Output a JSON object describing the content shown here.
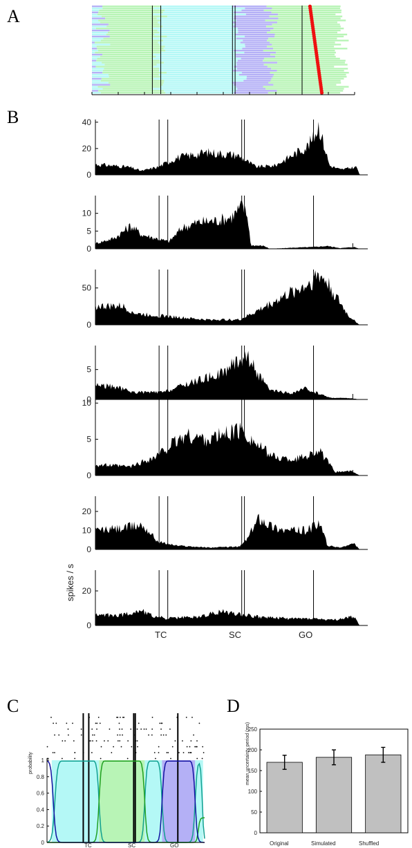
{
  "panel_labels": [
    "A",
    "B",
    "C",
    "D"
  ],
  "colors": {
    "cyan": "#b4f8f6",
    "green": "#b8f4b6",
    "violet": "#b4b0f6",
    "red": "#ee1111",
    "bar": "#c0c0c0",
    "line_blue": "#1010a0",
    "line_teal": "#10a090",
    "line_green": "#20a020"
  },
  "events": {
    "labels": [
      "TC",
      "SC",
      "GO"
    ],
    "times": [
      0.25,
      0.53,
      0.8
    ],
    "marker_times": [
      0.23,
      0.262,
      0.535,
      0.545,
      0.8
    ]
  },
  "chart_data": [
    {
      "panel": "A",
      "type": "raster-states",
      "trials": 44,
      "state_order": [
        "cyan",
        "green",
        "cyan",
        "violet",
        "green"
      ],
      "boundaries": [
        0.04,
        0.26,
        0.56,
        0.68,
        0.95
      ],
      "red_marker_range": [
        0.83,
        0.875
      ]
    },
    {
      "panel": "B",
      "type": "area",
      "ylabel": "spikes / s",
      "x_tick_labels": [
        "TC",
        "SC",
        "GO"
      ],
      "series": [
        {
          "yticks": [
            0,
            20,
            40
          ],
          "ymax": 42,
          "profile": [
            [
              0,
              8
            ],
            [
              0.12,
              6
            ],
            [
              0.17,
              3
            ],
            [
              0.23,
              6
            ],
            [
              0.3,
              13
            ],
            [
              0.41,
              17
            ],
            [
              0.52,
              15
            ],
            [
              0.59,
              6
            ],
            [
              0.66,
              7
            ],
            [
              0.74,
              17
            ],
            [
              0.78,
              22
            ],
            [
              0.8,
              28
            ],
            [
              0.82,
              38
            ],
            [
              0.84,
              22
            ],
            [
              0.86,
              7
            ],
            [
              0.9,
              4
            ],
            [
              0.96,
              6
            ],
            [
              0.97,
              0
            ]
          ]
        },
        {
          "yticks": [
            0,
            5,
            10
          ],
          "ymax": 15,
          "profile": [
            [
              0,
              1.5
            ],
            [
              0.07,
              3
            ],
            [
              0.13,
              6.5
            ],
            [
              0.17,
              4
            ],
            [
              0.22,
              3
            ],
            [
              0.27,
              2
            ],
            [
              0.32,
              6
            ],
            [
              0.38,
              7.5
            ],
            [
              0.45,
              8
            ],
            [
              0.5,
              9
            ],
            [
              0.54,
              12
            ],
            [
              0.56,
              9
            ],
            [
              0.57,
              1
            ],
            [
              0.62,
              0.8
            ],
            [
              0.64,
              0
            ],
            [
              0.72,
              0.3
            ],
            [
              0.8,
              0.5
            ],
            [
              0.85,
              0.8
            ],
            [
              0.9,
              0.2
            ],
            [
              0.95,
              0.5
            ],
            [
              0.97,
              0
            ]
          ]
        },
        {
          "yticks": [
            0,
            50
          ],
          "ymax": 75,
          "profile": [
            [
              0,
              25
            ],
            [
              0.1,
              25
            ],
            [
              0.15,
              15
            ],
            [
              0.25,
              12
            ],
            [
              0.4,
              7
            ],
            [
              0.53,
              7
            ],
            [
              0.58,
              16
            ],
            [
              0.7,
              40
            ],
            [
              0.78,
              55
            ],
            [
              0.82,
              68
            ],
            [
              0.85,
              58
            ],
            [
              0.88,
              40
            ],
            [
              0.93,
              12
            ],
            [
              0.96,
              3
            ],
            [
              0.97,
              0
            ]
          ]
        },
        {
          "yticks": [
            0,
            5
          ],
          "ymax": 9,
          "profile": [
            [
              0,
              2.5
            ],
            [
              0.08,
              2
            ],
            [
              0.14,
              1.2
            ],
            [
              0.25,
              1.2
            ],
            [
              0.33,
              2.5
            ],
            [
              0.4,
              3.5
            ],
            [
              0.47,
              4.5
            ],
            [
              0.52,
              6.5
            ],
            [
              0.56,
              7.2
            ],
            [
              0.6,
              4
            ],
            [
              0.64,
              1.5
            ],
            [
              0.72,
              1
            ],
            [
              0.77,
              1.8
            ],
            [
              0.82,
              1
            ],
            [
              0.86,
              0.3
            ],
            [
              0.94,
              0.2
            ],
            [
              0.97,
              0
            ]
          ]
        },
        {
          "yticks": [
            0,
            5,
            10
          ],
          "ymax": 10.5,
          "profile": [
            [
              0,
              1.5
            ],
            [
              0.13,
              1.2
            ],
            [
              0.18,
              2
            ],
            [
              0.22,
              2.5
            ],
            [
              0.27,
              4
            ],
            [
              0.33,
              5.5
            ],
            [
              0.42,
              5
            ],
            [
              0.5,
              6
            ],
            [
              0.54,
              6.2
            ],
            [
              0.6,
              4
            ],
            [
              0.66,
              2.5
            ],
            [
              0.73,
              2.2
            ],
            [
              0.78,
              2.8
            ],
            [
              0.82,
              3.5
            ],
            [
              0.85,
              2
            ],
            [
              0.88,
              0.5
            ],
            [
              0.94,
              0.6
            ],
            [
              0.97,
              0
            ]
          ]
        },
        {
          "yticks": [
            0,
            10,
            20
          ],
          "ymax": 28,
          "profile": [
            [
              0,
              10
            ],
            [
              0.1,
              11
            ],
            [
              0.17,
              13
            ],
            [
              0.2,
              9
            ],
            [
              0.23,
              4
            ],
            [
              0.3,
              2
            ],
            [
              0.42,
              1
            ],
            [
              0.53,
              1.5
            ],
            [
              0.56,
              6
            ],
            [
              0.6,
              17
            ],
            [
              0.65,
              12
            ],
            [
              0.7,
              10
            ],
            [
              0.77,
              10
            ],
            [
              0.82,
              13
            ],
            [
              0.84,
              9
            ],
            [
              0.85,
              2
            ],
            [
              0.9,
              1
            ],
            [
              0.95,
              3
            ],
            [
              0.97,
              0
            ]
          ]
        },
        {
          "yticks": [
            0,
            20
          ],
          "ymax": 32,
          "profile": [
            [
              0,
              6
            ],
            [
              0.1,
              6
            ],
            [
              0.17,
              9
            ],
            [
              0.2,
              6
            ],
            [
              0.26,
              4
            ],
            [
              0.38,
              5
            ],
            [
              0.46,
              8
            ],
            [
              0.52,
              7
            ],
            [
              0.6,
              5
            ],
            [
              0.7,
              4
            ],
            [
              0.8,
              4
            ],
            [
              0.87,
              3
            ],
            [
              0.95,
              5
            ],
            [
              0.97,
              0
            ]
          ]
        }
      ]
    },
    {
      "panel": "C",
      "type": "line",
      "ylabel": "probability",
      "yticks": [
        0,
        0.2,
        0.4,
        0.6,
        0.8,
        1
      ],
      "x_tick_labels": [
        "TC",
        "SC",
        "GO"
      ],
      "state_bands": [
        {
          "color": "cyan",
          "from": 0.03,
          "to": 0.33
        },
        {
          "color": "green",
          "from": 0.33,
          "to": 0.62
        },
        {
          "color": "cyan",
          "from": 0.62,
          "to": 0.73
        },
        {
          "color": "violet",
          "from": 0.73,
          "to": 0.94
        },
        {
          "color": "cyan",
          "from": 0.94,
          "to": 0.99
        }
      ]
    },
    {
      "panel": "D",
      "type": "bar",
      "ylabel": "mean uncertainty period (ms)",
      "categories": [
        "Original",
        "Simulated",
        "Shuffled"
      ],
      "values": [
        170,
        182,
        188
      ],
      "errors": [
        17,
        18,
        18
      ],
      "ylim": [
        0,
        250
      ],
      "yticks": [
        0,
        50,
        100,
        150,
        200,
        250
      ]
    }
  ]
}
